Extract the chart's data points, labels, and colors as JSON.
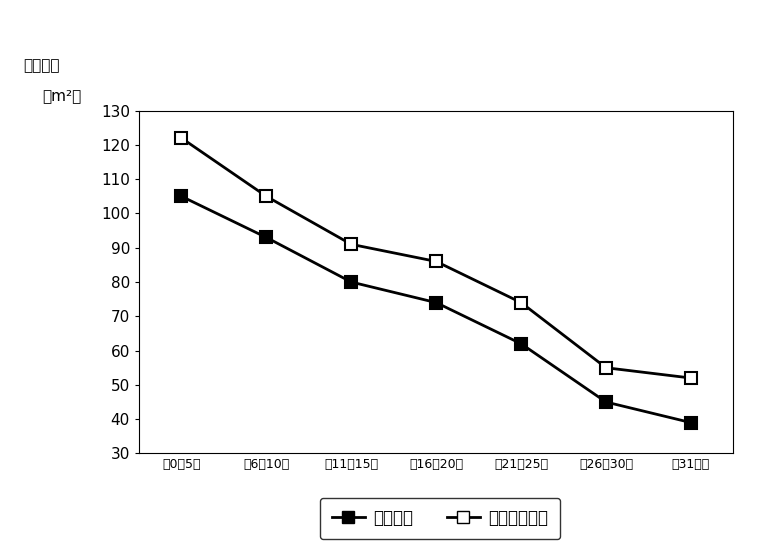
{
  "categories": [
    "筁0～5年",
    "筁6～10年",
    "筁11～15年",
    "筁16～20年",
    "筁21～25年",
    "筁26～30年",
    "筁31年～"
  ],
  "series1_label": "成約物件",
  "series1_values": [
    105,
    93,
    80,
    74,
    62,
    45,
    39
  ],
  "series1_color": "#000000",
  "series1_marker": "s",
  "series1_markerfacecolor": "#000000",
  "series2_label": "新規登録物件",
  "series2_values": [
    122,
    105,
    91,
    86,
    74,
    55,
    52
  ],
  "series2_color": "#000000",
  "series2_marker": "s",
  "series2_markerfacecolor": "#ffffff",
  "ylabel_line1": "（万円／",
  "ylabel_line2": "　m²）",
  "ylim": [
    30,
    130
  ],
  "yticks": [
    30,
    40,
    50,
    60,
    70,
    80,
    90,
    100,
    110,
    120,
    130
  ],
  "background_color": "#ffffff",
  "line_width": 2.0,
  "marker_size": 9,
  "tick_fontsize": 11,
  "xtick_fontsize": 9,
  "legend_fontsize": 12
}
